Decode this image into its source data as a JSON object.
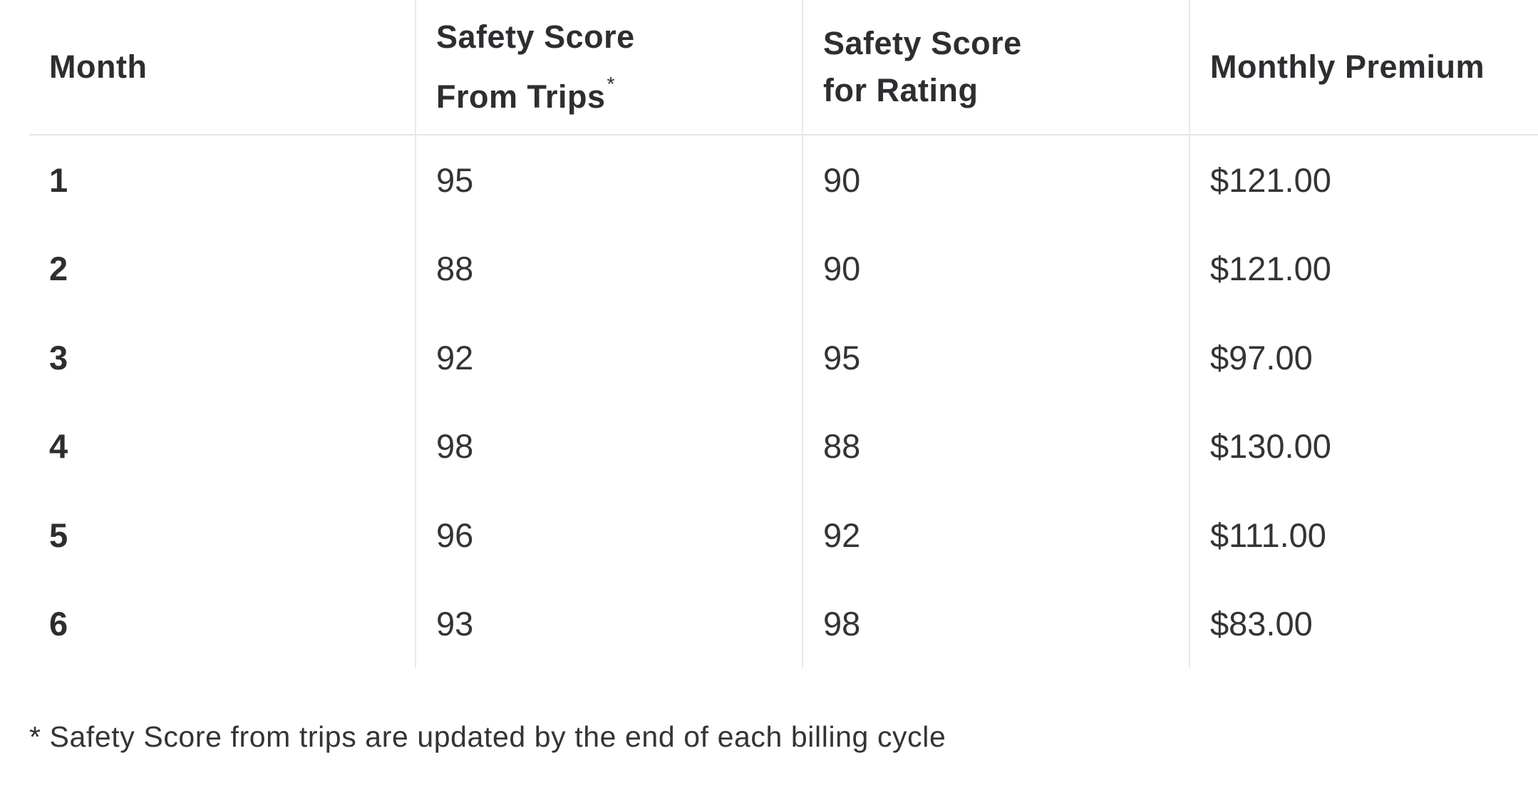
{
  "table": {
    "headers": [
      {
        "line1": "Month",
        "line2": "",
        "sup": ""
      },
      {
        "line1": "Safety Score",
        "line2": "From Trips",
        "sup": "*"
      },
      {
        "line1": "Safety Score",
        "line2": "for Rating",
        "sup": ""
      },
      {
        "line1": "Monthly Premium",
        "line2": "",
        "sup": ""
      }
    ],
    "rows": [
      {
        "month": "1",
        "trips": "95",
        "rating": "90",
        "premium": "$121.00"
      },
      {
        "month": "2",
        "trips": "88",
        "rating": "90",
        "premium": "$121.00"
      },
      {
        "month": "3",
        "trips": "92",
        "rating": "95",
        "premium": "$97.00"
      },
      {
        "month": "4",
        "trips": "98",
        "rating": "88",
        "premium": "$130.00"
      },
      {
        "month": "5",
        "trips": "96",
        "rating": "92",
        "premium": "$111.00"
      },
      {
        "month": "6",
        "trips": "93",
        "rating": "98",
        "premium": "$83.00"
      }
    ]
  },
  "footnote": "* Safety Score from trips are updated by the end of each billing cycle",
  "colors": {
    "text": "#2f3033",
    "border": "#e9e9ea",
    "background": "#ffffff"
  }
}
